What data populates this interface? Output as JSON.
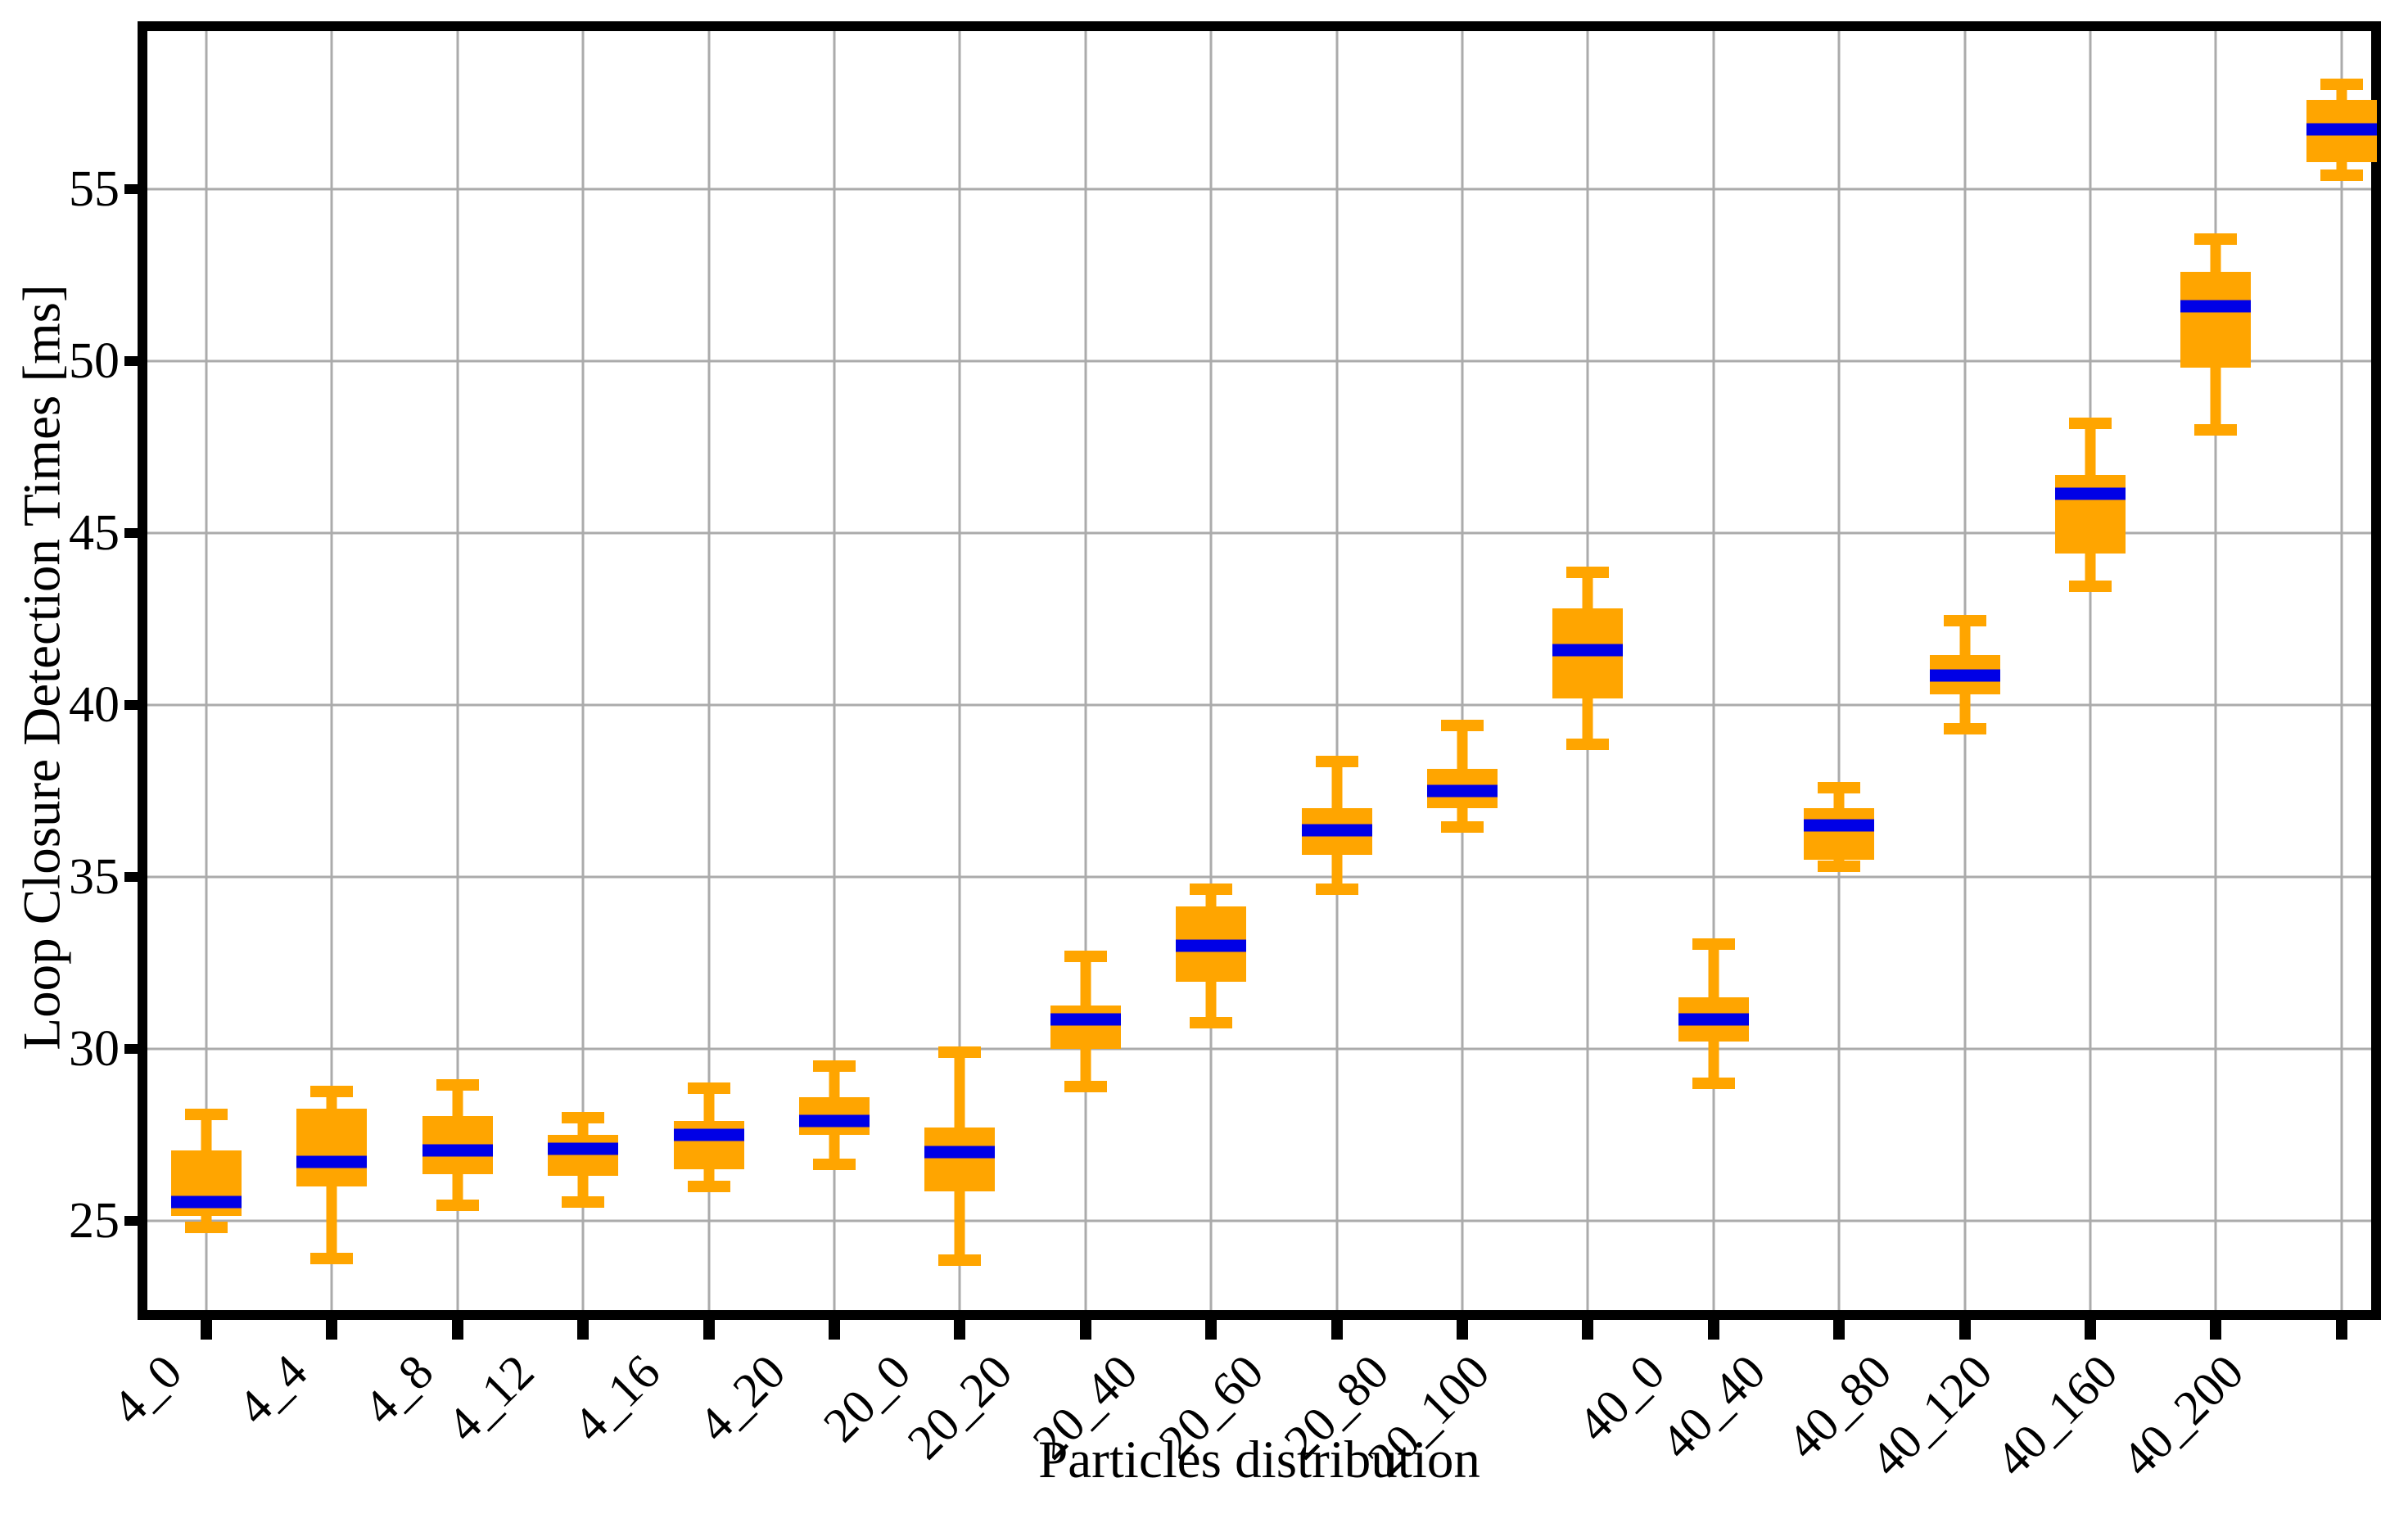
{
  "chart_data": {
    "type": "boxplot",
    "title": "",
    "xlabel": "Particles distribution",
    "ylabel": "Loop Closure Detection Times [ms]",
    "ylim": [
      22.4,
      59.6
    ],
    "yticks": [
      25,
      30,
      35,
      40,
      45,
      50,
      55
    ],
    "grid": true,
    "legend_position": "none",
    "box_color": "#FFA500",
    "median_color": "#0000E6",
    "grid_color": "#ABABAB",
    "axis_color": "#000000",
    "categories": [
      "4_0",
      "4_4",
      "4_8",
      "4_12",
      "4_16",
      "4_20",
      "20_0",
      "20_20",
      "20_40",
      "20_60",
      "20_80",
      "20_100",
      "40_0",
      "40_40",
      "40_80",
      "40_120",
      "40_160",
      "40_200"
    ],
    "series": [
      {
        "name": "Loop Closure Detection Times",
        "boxes": [
          {
            "category": "4_0",
            "whisker_low": 24.8,
            "q1": 25.15,
            "median": 25.55,
            "q3": 27.05,
            "whisker_high": 28.1
          },
          {
            "category": "4_4",
            "whisker_low": 23.9,
            "q1": 26.0,
            "median": 26.7,
            "q3": 28.25,
            "whisker_high": 28.75
          },
          {
            "category": "4_8",
            "whisker_low": 25.45,
            "q1": 26.35,
            "median": 27.05,
            "q3": 28.05,
            "whisker_high": 28.95
          },
          {
            "category": "4_12",
            "whisker_low": 25.55,
            "q1": 26.3,
            "median": 27.1,
            "q3": 27.5,
            "whisker_high": 28.0
          },
          {
            "category": "4_16",
            "whisker_low": 26.0,
            "q1": 26.5,
            "median": 27.5,
            "q3": 27.9,
            "whisker_high": 28.85
          },
          {
            "category": "4_20",
            "whisker_low": 26.65,
            "q1": 27.5,
            "median": 27.9,
            "q3": 28.6,
            "whisker_high": 29.5
          },
          {
            "category": "20_0",
            "whisker_low": 23.85,
            "q1": 25.85,
            "median": 27.0,
            "q3": 27.7,
            "whisker_high": 29.9
          },
          {
            "category": "20_20",
            "whisker_low": 28.9,
            "q1": 30.0,
            "median": 30.85,
            "q3": 31.25,
            "whisker_high": 32.7
          },
          {
            "category": "20_40",
            "whisker_low": 30.75,
            "q1": 31.95,
            "median": 33.0,
            "q3": 34.15,
            "whisker_high": 34.65
          },
          {
            "category": "20_60",
            "whisker_low": 34.65,
            "q1": 35.65,
            "median": 36.35,
            "q3": 37.0,
            "whisker_high": 38.35
          },
          {
            "category": "20_80",
            "whisker_low": 36.45,
            "q1": 37.0,
            "median": 37.5,
            "q3": 38.15,
            "whisker_high": 39.4
          },
          {
            "category": "20_100",
            "whisker_low": 38.85,
            "q1": 40.2,
            "median": 41.6,
            "q3": 42.8,
            "whisker_high": 43.85
          },
          {
            "category": "40_0",
            "whisker_low": 29.0,
            "q1": 30.2,
            "median": 30.85,
            "q3": 31.5,
            "whisker_high": 33.05
          },
          {
            "category": "40_40",
            "whisker_low": 35.3,
            "q1": 35.5,
            "median": 36.5,
            "q3": 37.0,
            "whisker_high": 37.6
          },
          {
            "category": "40_80",
            "whisker_low": 39.3,
            "q1": 40.3,
            "median": 40.85,
            "q3": 41.45,
            "whisker_high": 42.45
          },
          {
            "category": "40_120",
            "whisker_low": 43.45,
            "q1": 44.4,
            "median": 46.15,
            "q3": 46.7,
            "whisker_high": 48.2
          },
          {
            "category": "40_160",
            "whisker_low": 48.0,
            "q1": 49.8,
            "median": 51.6,
            "q3": 52.6,
            "whisker_high": 53.55
          },
          {
            "category": "40_200",
            "whisker_low": 55.4,
            "q1": 55.8,
            "median": 56.75,
            "q3": 57.6,
            "whisker_high": 58.05
          }
        ]
      }
    ],
    "layout": {
      "first_category_pct": 2.65,
      "category_step_pct": 5.648
    }
  }
}
